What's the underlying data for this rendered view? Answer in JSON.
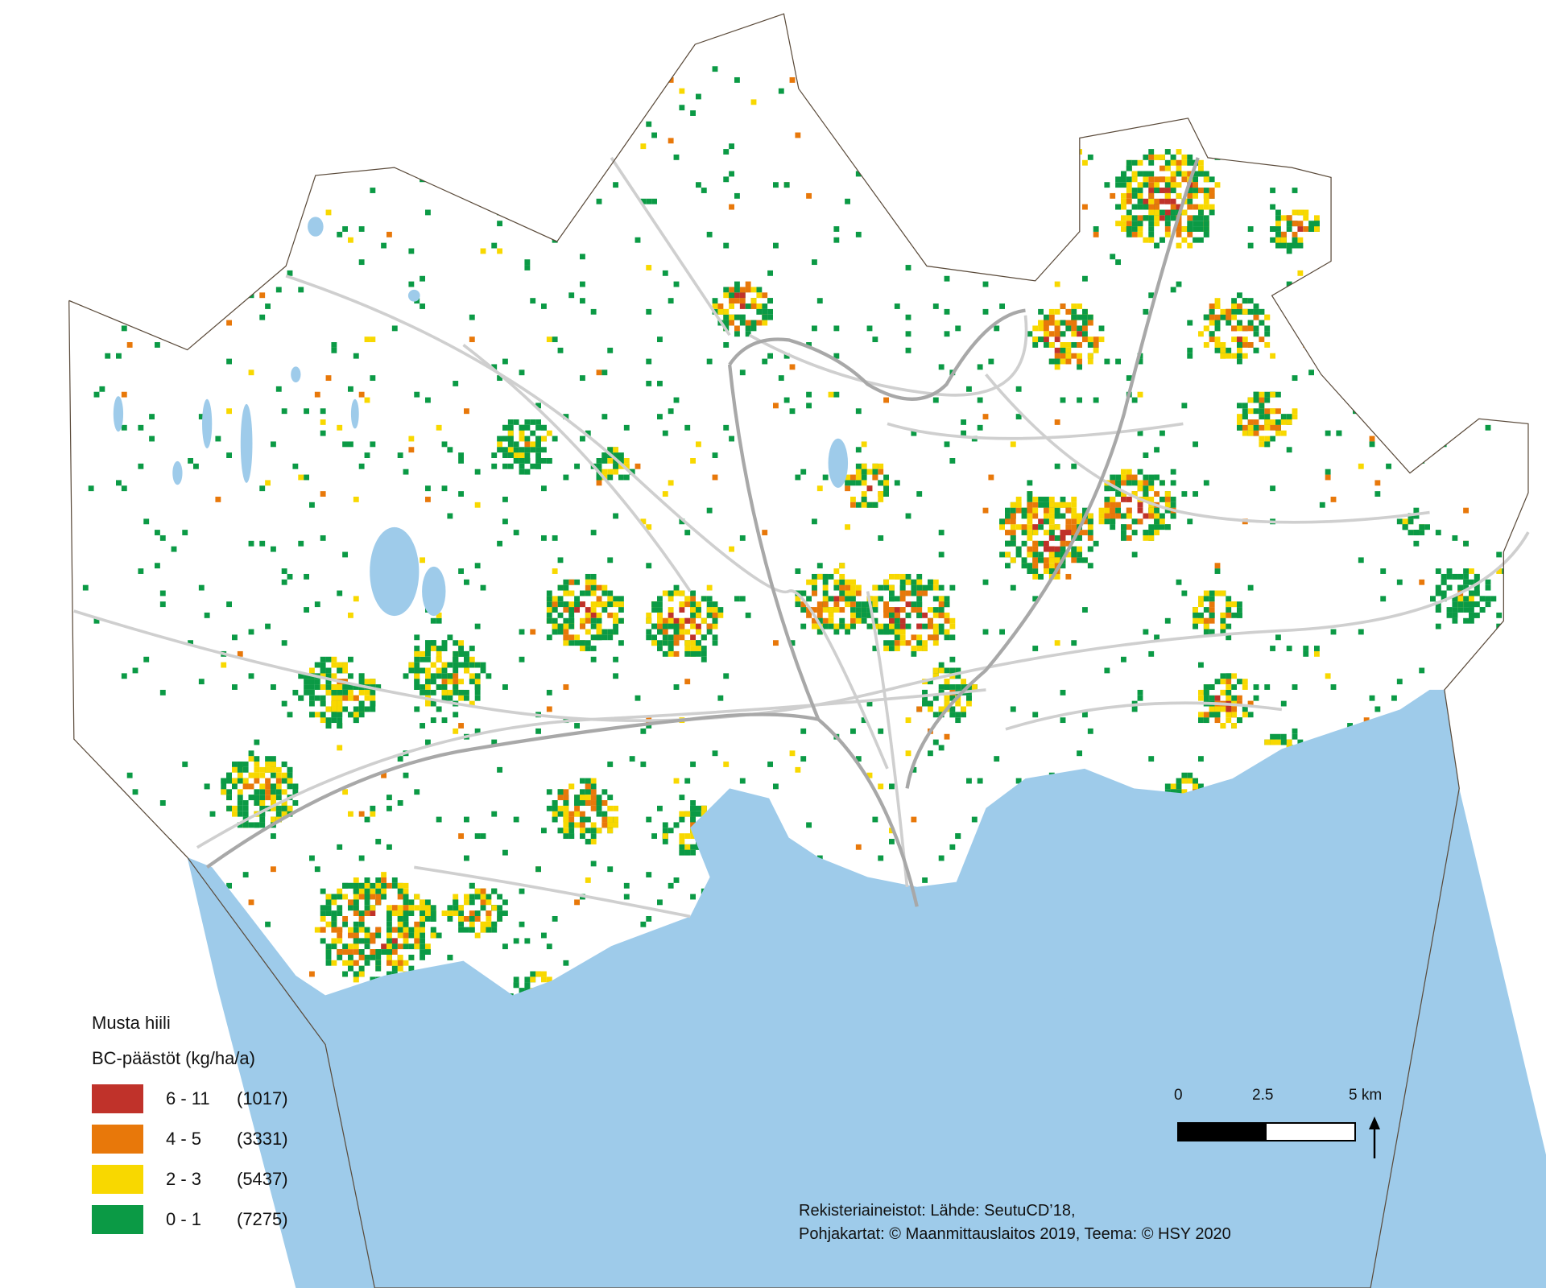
{
  "legend": {
    "title": "Musta hiili",
    "subtitle": "BC-päästöt (kg/ha/a)",
    "classes": [
      {
        "range": "6 - 11",
        "count": "(1017)",
        "color": "#c0322a"
      },
      {
        "range": "4 - 5",
        "count": "(3331)",
        "color": "#e8780a"
      },
      {
        "range": "2 - 3",
        "count": "(5437)",
        "color": "#f8d800"
      },
      {
        "range": "0 - 1",
        "count": "(7275)",
        "color": "#0b9a45"
      }
    ]
  },
  "scale_bar": {
    "ticks": [
      "0",
      "2.5",
      "5 km"
    ]
  },
  "north_arrow": "north-arrow-icon",
  "credits": {
    "line1": "Rekisteriaineistot: Lähde: SeutuCD’18,",
    "line2": "Pohjakartat: © Maanmittauslaitos 2019, Teema: © HSY 2020"
  },
  "colors": {
    "water": "#9ecbea",
    "land": "#ffffff",
    "roads": "#cfcfcf",
    "main_roads": "#a8a8a8",
    "boundary": "#5a4a3a"
  }
}
